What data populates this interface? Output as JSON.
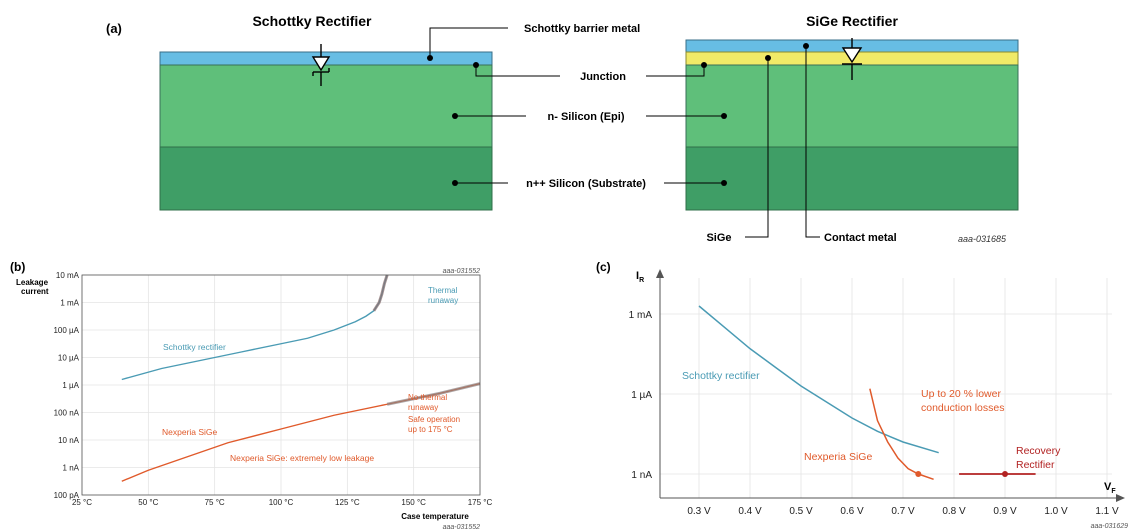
{
  "panel_a": {
    "label": "(a)",
    "schottky_title": "Schottky Rectifier",
    "sige_title": "SiGe Rectifier",
    "labels": {
      "barrier_metal": "Schottky barrier metal",
      "junction": "Junction",
      "epi": "n- Silicon (Epi)",
      "substrate": "n++ Silicon (Substrate)",
      "sige": "SiGe",
      "contact_metal": "Contact metal"
    },
    "code": "aaa-031685",
    "colors": {
      "metal": "#67bde4",
      "sige": "#f1ea68",
      "epi": "#5fbf7a",
      "substrate": "#3f9e66"
    }
  },
  "panel_b": {
    "label": "(b)",
    "code_top": "aaa-031552",
    "code_bottom": "aaa-031552",
    "ylabel_line1": "Leakage",
    "ylabel_line2": "current",
    "xlabel": "Case temperature",
    "annotations": {
      "thermal_line1": "Thermal",
      "thermal_line2": "runaway",
      "no_thermal_1": "No thermal",
      "no_thermal_2": "runaway",
      "no_thermal_3": "Safe operation",
      "no_thermal_4": "up to 175 °C",
      "schottky": "Schottky rectifier",
      "sige": "Nexperia SiGe",
      "sige_low": "Nexperia SiGe: extremely low leakage"
    }
  },
  "panel_c": {
    "label": "(c)",
    "ylabel": "I",
    "ylabel_sub": "R",
    "xlabel": "V",
    "xlabel_sub": "F",
    "code": "aaa-031629",
    "annotations": {
      "schottky": "Schottky rectifier",
      "lower_1": "Up to 20 % lower",
      "lower_2": "conduction losses",
      "sige": "Nexperia SiGe",
      "recovery_1": "Recovery",
      "recovery_2": "Rectifier"
    }
  },
  "chart_data": [
    {
      "type": "line",
      "panel": "b",
      "xlabel": "Case temperature",
      "ylabel": "Leakage current",
      "scale": "log",
      "x_ticks": [
        "25 °C",
        "50 °C",
        "75 °C",
        "100 °C",
        "125 °C",
        "150 °C",
        "175 °C"
      ],
      "x_tick_values": [
        25,
        50,
        75,
        100,
        125,
        150,
        175
      ],
      "y_ticks": [
        "10 mA",
        "1 mA",
        "100 µA",
        "10 µA",
        "1 µA",
        "100 nA",
        "10 nA",
        "1 nA",
        "100 pA"
      ],
      "y_tick_exponents": [
        -2,
        -3,
        -4,
        -5,
        -6,
        -7,
        -8,
        -9,
        -10
      ],
      "xlim": [
        25,
        175
      ],
      "series": [
        {
          "name": "Schottky rectifier",
          "color": "#4a9bb4",
          "x": [
            40,
            55,
            70,
            85,
            100,
            110,
            120,
            128,
            132,
            135,
            137,
            138,
            139,
            140
          ],
          "log10_y": [
            -5.8,
            -5.4,
            -5.1,
            -4.8,
            -4.5,
            -4.3,
            -4.0,
            -3.7,
            -3.5,
            -3.3,
            -3.0,
            -2.7,
            -2.3,
            -2.0
          ]
        },
        {
          "name": "Nexperia SiGe",
          "color": "#e05a2b",
          "x": [
            40,
            50,
            65,
            80,
            100,
            120,
            140,
            160,
            175
          ],
          "log10_y": [
            -9.5,
            -9.1,
            -8.6,
            -8.1,
            -7.6,
            -7.1,
            -6.7,
            -6.3,
            -5.95
          ]
        }
      ]
    },
    {
      "type": "line",
      "panel": "c",
      "xlabel": "VF",
      "ylabel": "IR",
      "x_ticks": [
        "0.3 V",
        "0.4 V",
        "0.5 V",
        "0.6 V",
        "0.7 V",
        "0.8 V",
        "0.9 V",
        "1.0 V",
        "1.1 V"
      ],
      "x_tick_values": [
        0.3,
        0.4,
        0.5,
        0.6,
        0.7,
        0.8,
        0.9,
        1.0,
        1.1
      ],
      "y_ticks": [
        "1 mA",
        "1 µA",
        "1 nA"
      ],
      "y_tick_exponents": [
        -3,
        -6,
        -9
      ],
      "series": [
        {
          "name": "Schottky rectifier",
          "color": "#4a9bb4",
          "x": [
            0.3,
            0.35,
            0.4,
            0.45,
            0.5,
            0.55,
            0.6,
            0.65,
            0.7,
            0.77
          ],
          "log10_y": [
            -2.7,
            -3.5,
            -4.3,
            -5.0,
            -5.7,
            -6.3,
            -6.9,
            -7.4,
            -7.8,
            -8.2
          ]
        },
        {
          "name": "Nexperia SiGe",
          "color": "#e05a2b",
          "x": [
            0.635,
            0.65,
            0.67,
            0.69,
            0.71,
            0.73,
            0.76
          ],
          "log10_y": [
            -5.8,
            -7.0,
            -7.8,
            -8.4,
            -8.8,
            -9.0,
            -9.2
          ]
        },
        {
          "name": "Recovery Rectifier",
          "color": "#b22222",
          "x": [
            0.81,
            0.9,
            0.96
          ],
          "log10_y": [
            -9.0,
            -9.0,
            -9.0
          ]
        }
      ]
    }
  ]
}
